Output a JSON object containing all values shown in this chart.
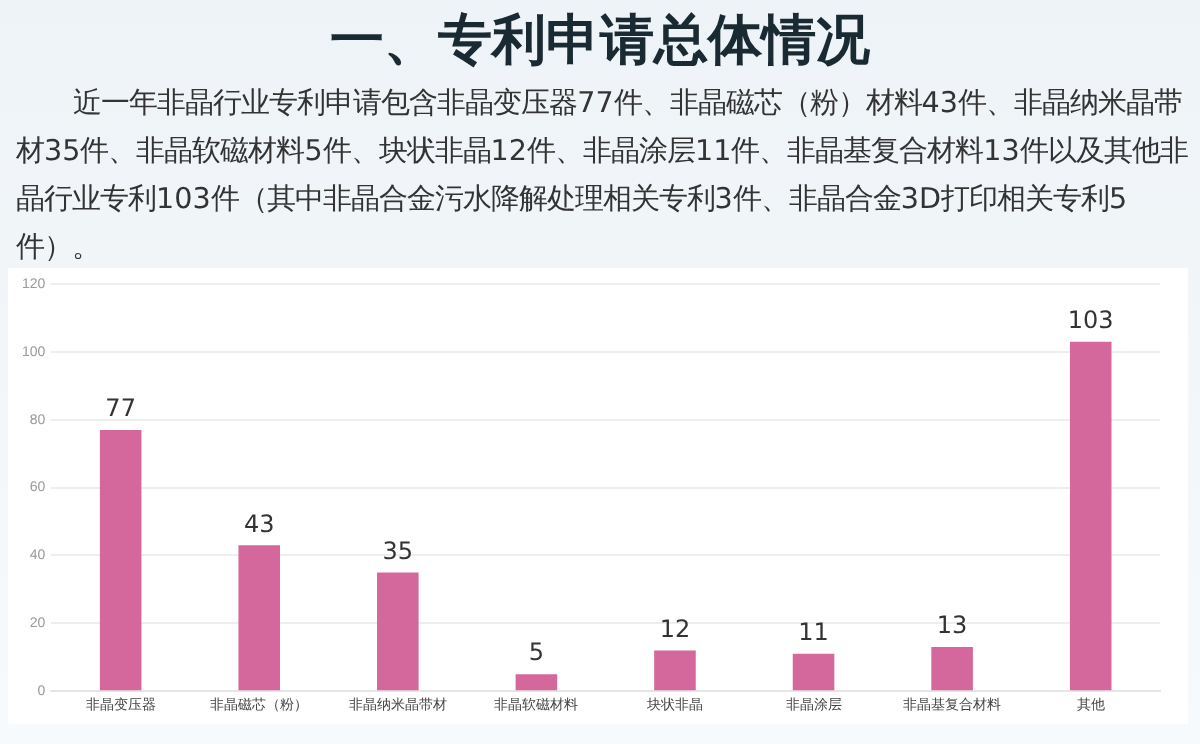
{
  "chart_data": {
    "type": "bar",
    "title": "一、专利申请总体情况",
    "subtitle": "近一年非晶行业专利申请包含非晶变压器77件、非晶磁芯（粉）材料43件、非晶纳米晶带材35件、非晶软磁材料5件、块状非晶12件、非晶涂层11件、非晶基复合材料13件以及其他非晶行业专利103件（其中非晶合金污水降解处理相关专利3件、非晶合金3D打印相关专利5件）。",
    "categories": [
      "非晶变压器",
      "非晶磁芯（粉）",
      "非晶纳米晶带材",
      "非晶软磁材料",
      "块状非晶",
      "非晶涂层",
      "非晶基复合材料",
      "其他"
    ],
    "values": [
      77,
      43,
      35,
      5,
      12,
      11,
      13,
      103
    ],
    "color": "#d4689c",
    "ylim": [
      0,
      120
    ],
    "yticks": [
      0,
      20,
      40,
      60,
      80,
      100,
      120
    ],
    "grid": "y",
    "data_labels": true,
    "legend": false
  }
}
